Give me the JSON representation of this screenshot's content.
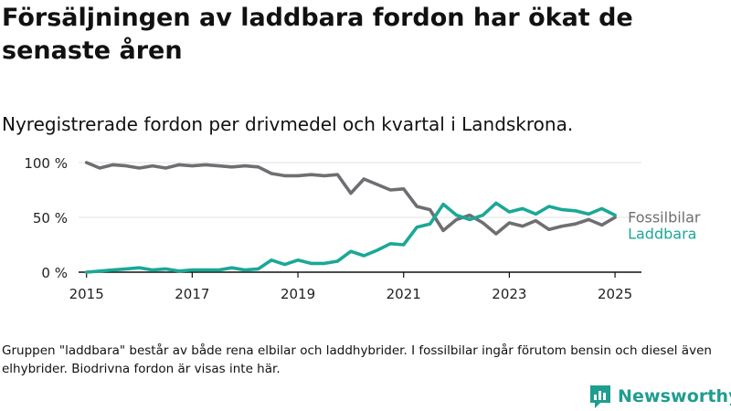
{
  "title": "Försäljningen av laddbara fordon har ökat de senaste åren",
  "subtitle": "Nyregistrerade fordon per drivmedel och kvartal i Landskrona.",
  "footnote": "Gruppen \"laddbara\" består av både rena elbilar och laddhybrider. I fossilbilar ingår förutom bensin och diesel även elhybrider. Biodrivna fordon är visas inte här.",
  "brand": {
    "name": "Newsworthy",
    "icon": "bar-chart-logo-icon",
    "color": "#1f9d8f"
  },
  "chart_data": {
    "type": "line",
    "title": "",
    "xlabel": "",
    "ylabel": "",
    "x_unit": "year (quarterly)",
    "xlim": [
      2015,
      2025.25
    ],
    "ylim": [
      0,
      100
    ],
    "yticks": [
      0,
      50,
      100
    ],
    "ytick_labels": [
      "0 %",
      "50 %",
      "100 %"
    ],
    "xticks": [
      2015,
      2017,
      2019,
      2021,
      2023,
      2025
    ],
    "xtick_labels": [
      "2015",
      "2017",
      "2019",
      "2021",
      "2023",
      "2025"
    ],
    "grid": "horizontal",
    "legend": "inline-right",
    "x": [
      2015.0,
      2015.25,
      2015.5,
      2015.75,
      2016.0,
      2016.25,
      2016.5,
      2016.75,
      2017.0,
      2017.25,
      2017.5,
      2017.75,
      2018.0,
      2018.25,
      2018.5,
      2018.75,
      2019.0,
      2019.25,
      2019.5,
      2019.75,
      2020.0,
      2020.25,
      2020.5,
      2020.75,
      2021.0,
      2021.25,
      2021.5,
      2021.75,
      2022.0,
      2022.25,
      2022.5,
      2022.75,
      2023.0,
      2023.25,
      2023.5,
      2023.75,
      2024.0,
      2024.25,
      2024.5,
      2024.75,
      2025.0
    ],
    "series": [
      {
        "name": "Fossilbilar",
        "color": "#6e6e73",
        "values": [
          100,
          95,
          98,
          97,
          95,
          97,
          95,
          98,
          97,
          98,
          97,
          96,
          97,
          96,
          90,
          88,
          88,
          89,
          88,
          89,
          72,
          85,
          80,
          75,
          76,
          60,
          57,
          38,
          48,
          52,
          45,
          35,
          45,
          42,
          47,
          39,
          42,
          44,
          48,
          43,
          50
        ]
      },
      {
        "name": "Laddbara",
        "color": "#1ba896",
        "values": [
          0,
          1,
          2,
          3,
          4,
          2,
          3,
          1,
          2,
          2,
          2,
          4,
          2,
          3,
          11,
          7,
          11,
          8,
          8,
          10,
          19,
          15,
          20,
          26,
          25,
          41,
          44,
          62,
          52,
          48,
          52,
          63,
          55,
          58,
          53,
          60,
          57,
          56,
          53,
          58,
          52
        ]
      }
    ]
  }
}
